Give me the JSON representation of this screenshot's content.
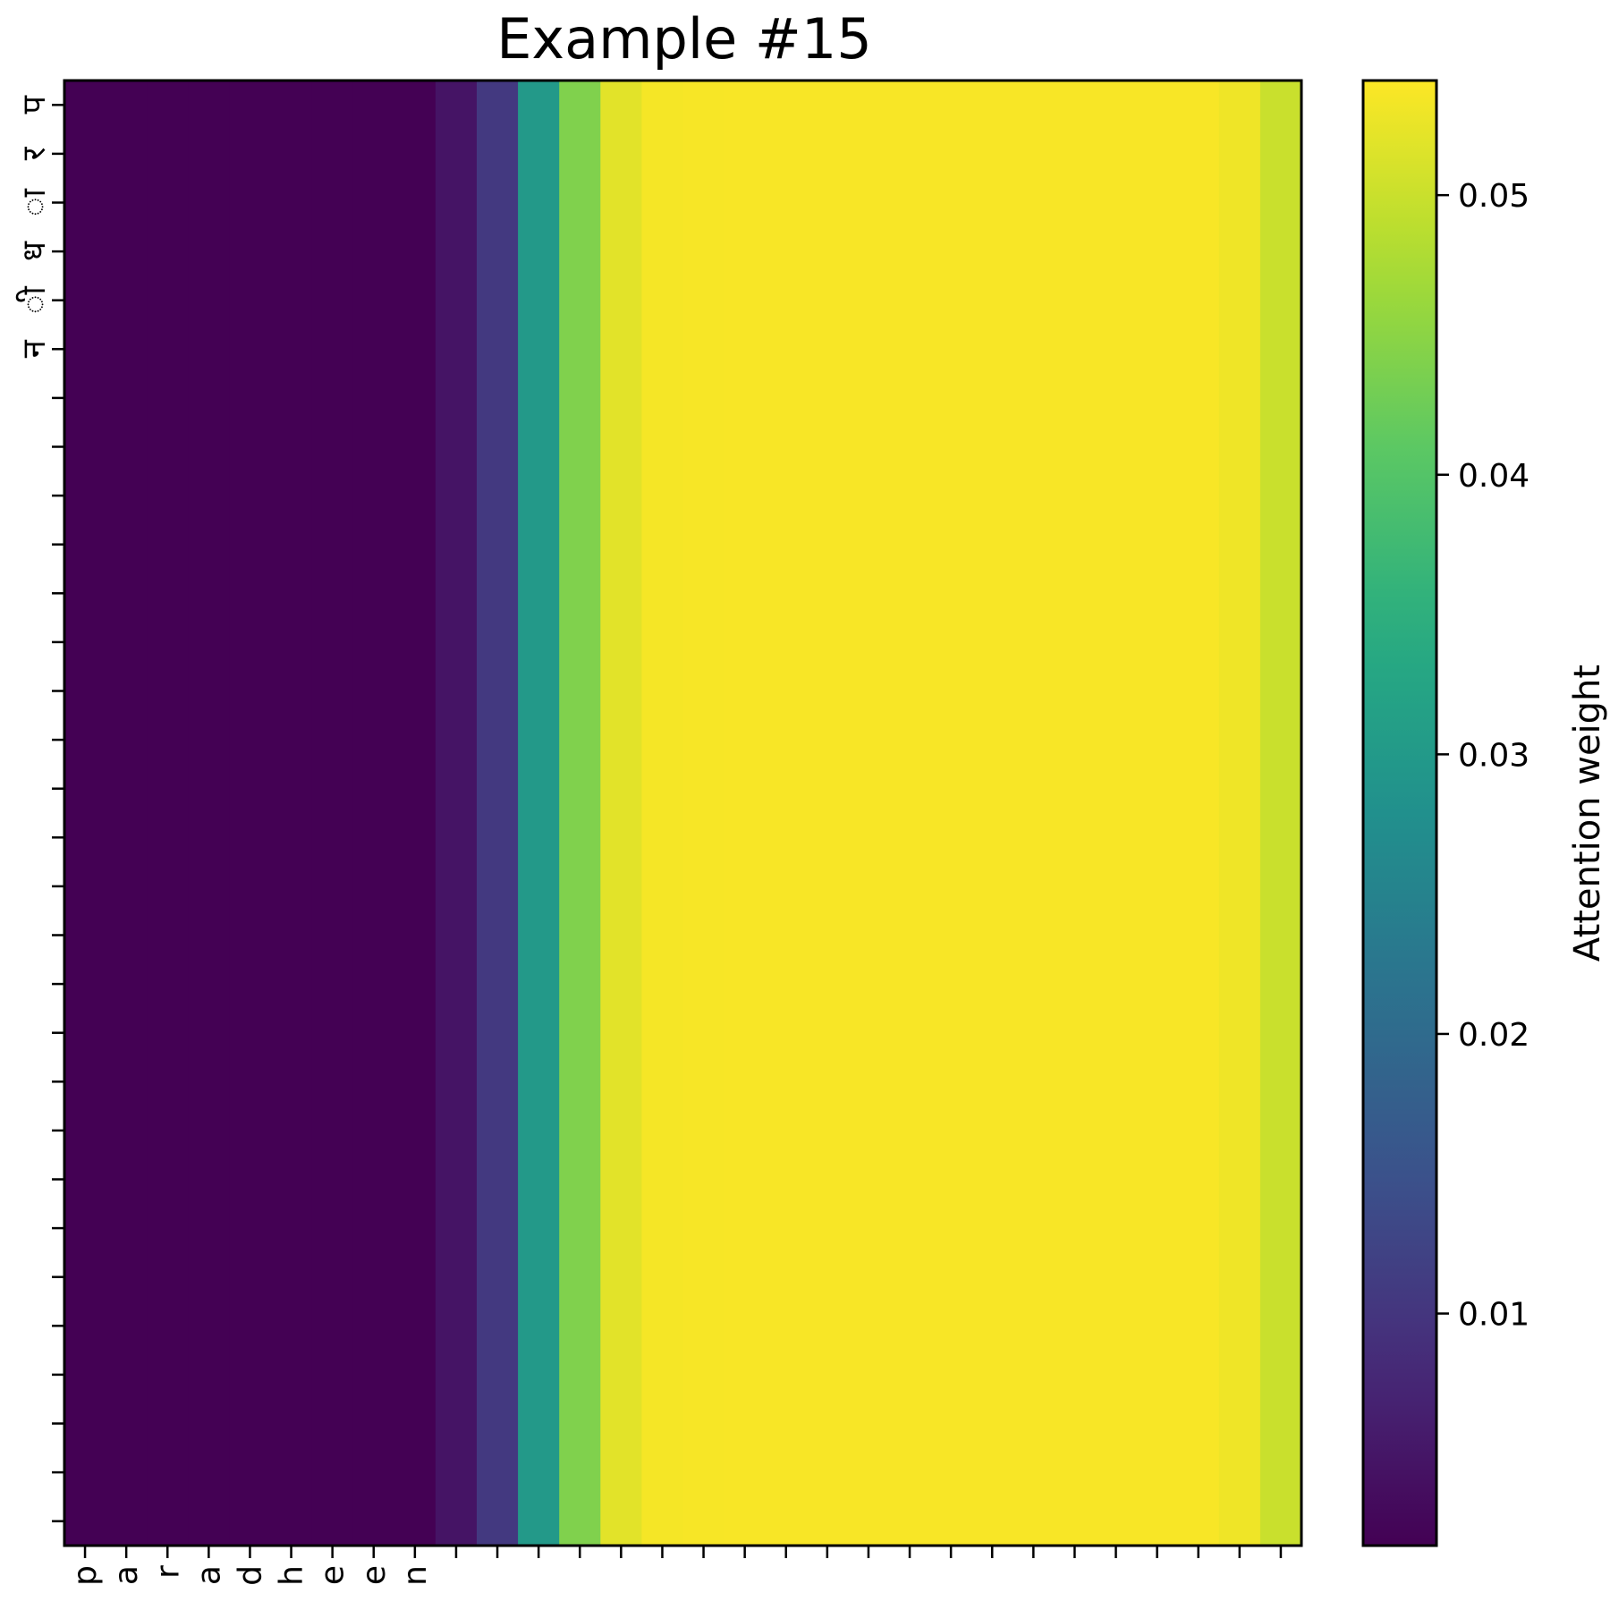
{
  "chart_data": {
    "type": "heatmap",
    "title": "Example #15",
    "x_tick_labels": [
      "p",
      "a",
      "r",
      "a",
      "d",
      "h",
      "e",
      "e",
      "n",
      "",
      "",
      "",
      "",
      "",
      "",
      "",
      "",
      "",
      "",
      "",
      "",
      "",
      "",
      "",
      "",
      "",
      "",
      "",
      "",
      ""
    ],
    "y_tick_labels": [
      "प",
      "र",
      "ा",
      "ध",
      "ी",
      "न",
      "",
      "",
      "",
      "",
      "",
      "",
      "",
      "",
      "",
      "",
      "",
      "",
      "",
      "",
      "",
      "",
      "",
      "",
      "",
      "",
      "",
      "",
      "",
      ""
    ],
    "column_weights": [
      0.0017,
      0.0017,
      0.0017,
      0.0017,
      0.0017,
      0.0017,
      0.0017,
      0.0017,
      0.0017,
      0.0046,
      0.0105,
      0.03,
      0.044,
      0.052,
      0.0535,
      0.0536,
      0.0537,
      0.0537,
      0.0537,
      0.0537,
      0.0537,
      0.0537,
      0.0537,
      0.0537,
      0.0537,
      0.0537,
      0.0537,
      0.0537,
      0.053,
      0.05
    ],
    "colorbar": {
      "label": "Attention weight",
      "ticks": [
        0.01,
        0.02,
        0.03,
        0.04,
        0.05
      ],
      "tick_labels": [
        "0.01",
        "0.02",
        "0.03",
        "0.04",
        "0.05"
      ],
      "min": 0.0017,
      "max": 0.0541,
      "colormap": "viridis"
    }
  }
}
